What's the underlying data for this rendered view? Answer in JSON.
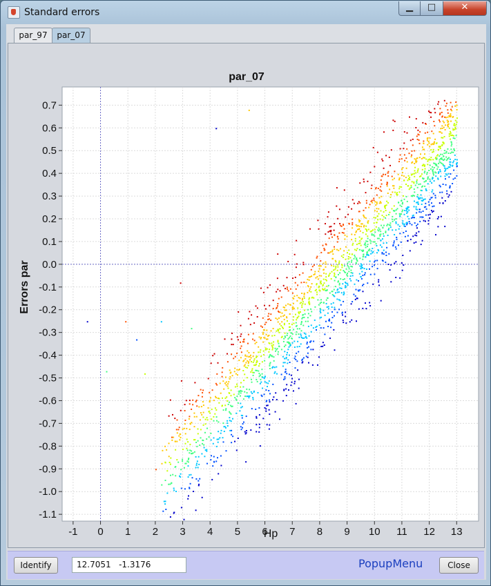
{
  "window": {
    "title": "Standard errors",
    "controls": {
      "minimize": "▁",
      "maximize": "□",
      "close": "✕"
    }
  },
  "tabs": [
    {
      "label": "par_97"
    },
    {
      "label": "par_07"
    }
  ],
  "active_tab": "par_07",
  "bottom_bar": {
    "identify_label": "Identify",
    "coord_value": "12.7051   -1.3176",
    "popup_menu_label": "PopupMenu",
    "close_label": "Close"
  },
  "chart_data": {
    "type": "scatter",
    "title": "par_07",
    "xlabel": "Hp",
    "ylabel": "Errors par",
    "xlim": [
      -1.4,
      13.8
    ],
    "ylim": [
      -1.13,
      0.78
    ],
    "x_ticks": [
      "-1",
      "0",
      "1",
      "2",
      "3",
      "4",
      "5",
      "6",
      "7",
      "8",
      "9",
      "10",
      "11",
      "12",
      "13"
    ],
    "y_ticks": [
      "0.7",
      "0.6",
      "0.5",
      "0.4",
      "0.3",
      "0.2",
      "0.1",
      "0.0",
      "-0.1",
      "-0.2",
      "-0.3",
      "-0.4",
      "-0.5",
      "-0.6",
      "-0.7",
      "-0.8",
      "-0.9",
      "-1.0",
      "-1.1"
    ],
    "grid": true,
    "reference_lines": {
      "x": 0,
      "y": 0
    },
    "color_scale": [
      "#0000cc",
      "#0050ff",
      "#00c8ff",
      "#40ff80",
      "#c8ff00",
      "#ffc800",
      "#ff5000",
      "#cc0000"
    ],
    "trend": {
      "description": "dense diagonal cloud",
      "x_range": [
        2.2,
        13.0
      ],
      "y_at_x_start": -0.95,
      "y_at_x_end": 0.58,
      "band_width": 0.3
    },
    "outliers": [
      {
        "x": -0.5,
        "y": -0.25
      },
      {
        "x": 0.2,
        "y": -0.47
      },
      {
        "x": 0.9,
        "y": -0.25
      },
      {
        "x": 1.3,
        "y": -0.33
      },
      {
        "x": 1.6,
        "y": -0.48
      },
      {
        "x": 2.9,
        "y": -0.08
      },
      {
        "x": 2.2,
        "y": -0.25
      },
      {
        "x": 5.4,
        "y": 0.68
      },
      {
        "x": 4.2,
        "y": 0.6
      },
      {
        "x": 3.3,
        "y": -0.28
      },
      {
        "x": 2.0,
        "y": -0.9
      }
    ]
  }
}
